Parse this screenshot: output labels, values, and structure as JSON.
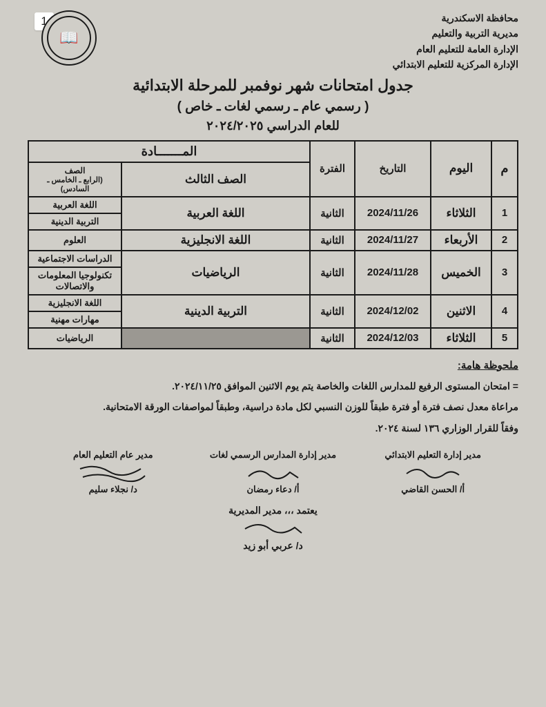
{
  "page_number": "1",
  "header": {
    "line1": "محافظة الاسكندرية",
    "line2": "مديرية التربية والتعليم",
    "line3": "الإدارة العامة للتعليم العام",
    "line4": "الإدارة المركزية للتعليم الابتدائي"
  },
  "title": {
    "main": "جدول امتحانات شهر نوفمبر للمرحلة الابتدائية",
    "sub": "( رسمي عام  ـ  رسمي لغات ـ  خاص )",
    "year": "للعام الدراسي ٢٠٢٤/٢٠٢٥"
  },
  "table": {
    "head": {
      "num": "م",
      "day": "اليوم",
      "date": "التاريخ",
      "period": "الفترة",
      "subject_group": "المـــــــادة",
      "grade3": "الصف الثالث",
      "grades456_hdr": "الصف",
      "grades456_sub": "(الرابع ـ الخامس ـ السادس)"
    },
    "rows": [
      {
        "n": "1",
        "day": "الثلاثاء",
        "date": "2024/11/26",
        "period": "الثانية",
        "g3": "اللغة العربية",
        "g456a": "اللغة العربية",
        "g456b": "التربية الدينية"
      },
      {
        "n": "2",
        "day": "الأربعاء",
        "date": "2024/11/27",
        "period": "الثانية",
        "g3": "اللغة الانجليزية",
        "g456a": "العلوم",
        "g456b": ""
      },
      {
        "n": "3",
        "day": "الخميس",
        "date": "2024/11/28",
        "period": "الثانية",
        "g3": "الرياضيات",
        "g456a": "الدراسات الاجتماعية",
        "g456b": "تكنولوجيا المعلومات والاتصالات"
      },
      {
        "n": "4",
        "day": "الاثنين",
        "date": "2024/12/02",
        "period": "الثانية",
        "g3": "التربية الدينية",
        "g456a": "اللغة الانجليزية",
        "g456b": "مهارات مهنية"
      },
      {
        "n": "5",
        "day": "الثلاثاء",
        "date": "2024/12/03",
        "period": "الثانية",
        "g3_shaded": true,
        "g456a": "الرياضيات",
        "g456b": ""
      }
    ]
  },
  "notes": {
    "heading": "ملحوظة هامة:",
    "items": [
      "=  امتحان المستوى الرفيع للمدارس اللغات والخاصة يتم يوم الاثنين الموافق ٢٠٢٤/١١/٢٥.",
      "مراعاة معدل نصف فترة أو فترة طبقاً للوزن النسبي لكل مادة دراسية، وطبقاً لمواصفات الورقة الامتحانية.",
      "وفقاً للقرار الوزاري ١٣٦ لسنة ٢٠٢٤."
    ]
  },
  "signatures": {
    "col1_title": "مدير إدارة التعليم الابتدائي",
    "col1_name": "أ/ الحسن القاضي",
    "col2_title": "مدير إدارة المدارس الرسمي لغات",
    "col2_name": "أ/ دعاء رمضان",
    "col3_title": "مدير عام التعليم العام",
    "col3_name": "د/ نجلاء سليم",
    "bottom_title": "يعتمد ،،، مدير المديرية",
    "bottom_name": "د/ عربي أبو زيد"
  },
  "colors": {
    "bg": "#d0cec8",
    "text": "#1a1a1a",
    "shaded": "#9b9892"
  }
}
